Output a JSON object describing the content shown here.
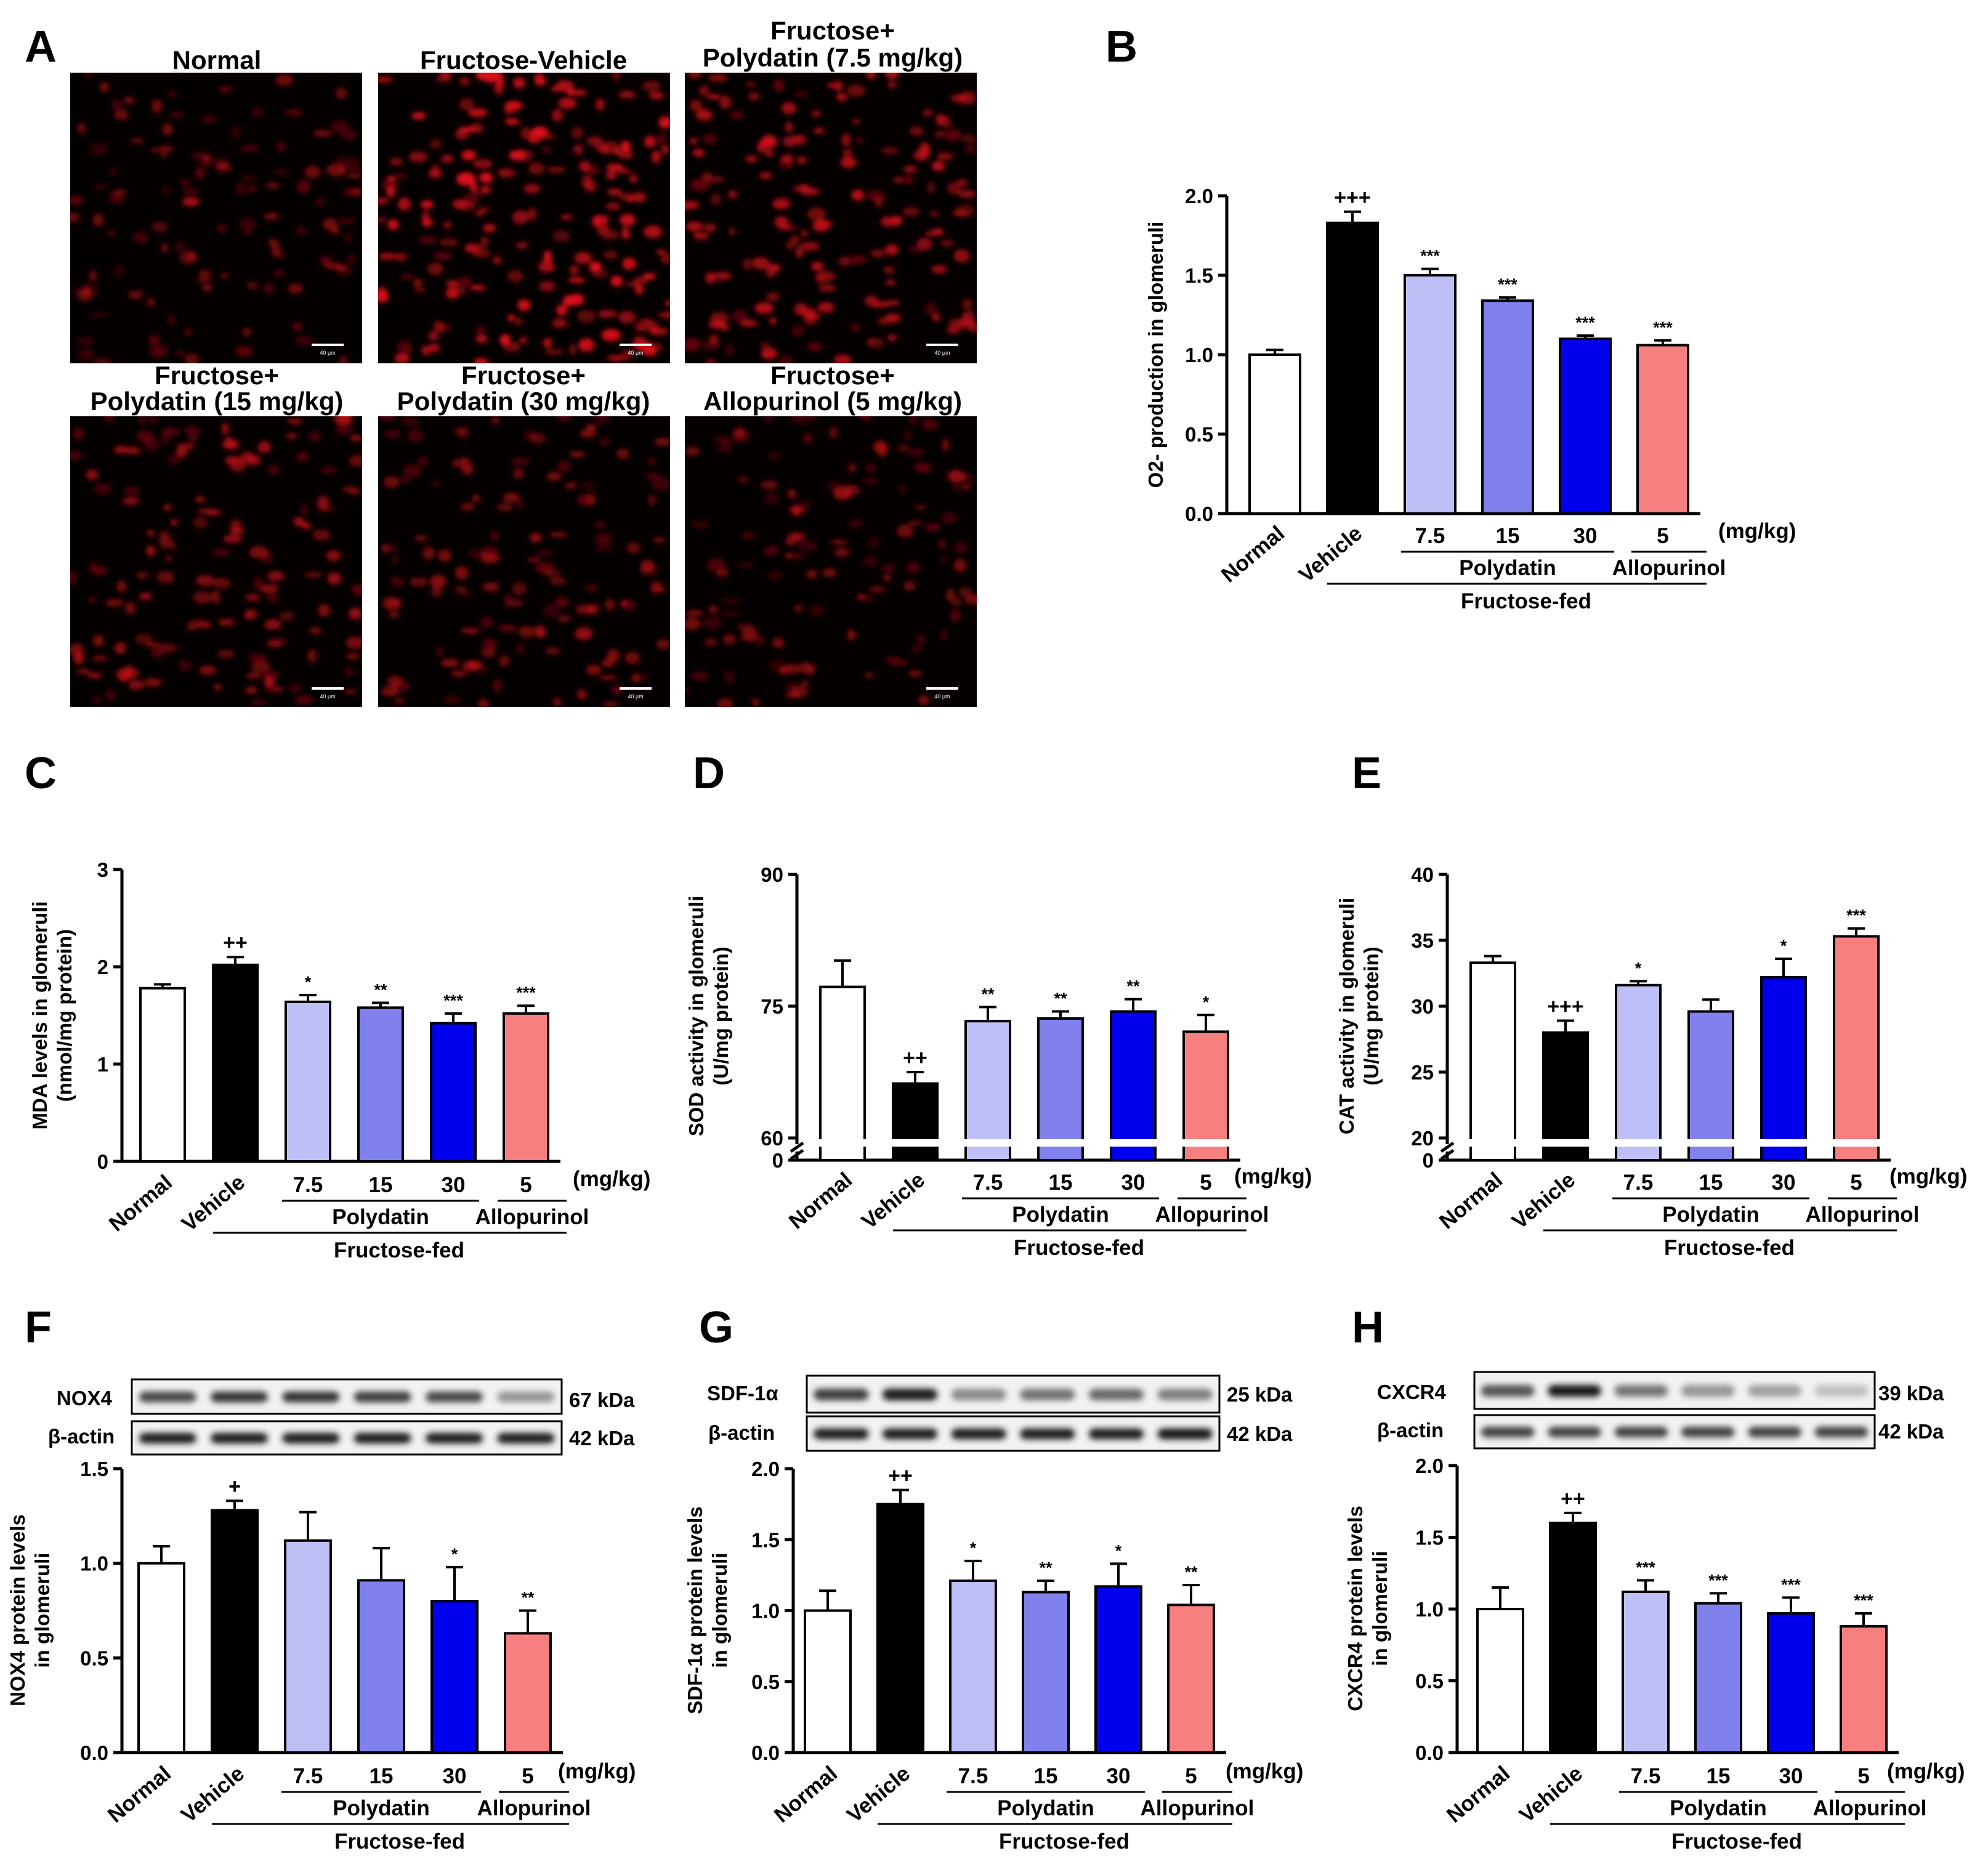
{
  "panel_labels": [
    "A",
    "B",
    "C",
    "D",
    "E",
    "F",
    "G",
    "H"
  ],
  "micrographs": {
    "titles": [
      [
        "Normal"
      ],
      [
        "Fructose-Vehicle"
      ],
      [
        "Fructose+",
        "Polydatin (7.5 mg/kg)"
      ],
      [
        "Fructose+",
        "Polydatin (15 mg/kg)"
      ],
      [
        "Fructose+",
        "Polydatin (30 mg/kg)"
      ],
      [
        "Fructose+",
        "Allopurinol (5 mg/kg)"
      ]
    ],
    "scale_bar_label": "40 μm",
    "intensity": [
      0.35,
      1.0,
      0.75,
      0.55,
      0.45,
      0.4
    ],
    "stain_color": "#e0101a",
    "background_color": "#050000"
  },
  "groups": {
    "categories": [
      "Normal",
      "Vehicle",
      "7.5",
      "15",
      "30",
      "5"
    ],
    "unit": "(mg/kg)",
    "polydatin": "Polydatin",
    "allopurinol": "Allopurinol",
    "fructose_fed": "Fructose-fed"
  },
  "colors": {
    "bars": [
      "#ffffff",
      "#000000",
      "#bfbff7",
      "#8181ee",
      "#0000ee",
      "#f77f7f"
    ]
  },
  "blots": {
    "F": {
      "rows": [
        {
          "name": "NOX4",
          "kda": "67 kDa",
          "intensity": [
            0.75,
            0.85,
            0.85,
            0.8,
            0.75,
            0.4
          ]
        },
        {
          "name": "β-actin",
          "kda": "42 kDa",
          "intensity": [
            0.95,
            0.95,
            0.95,
            0.95,
            0.95,
            0.95
          ]
        }
      ]
    },
    "G": {
      "rows": [
        {
          "name": "SDF-1α",
          "kda": "25 kDa",
          "intensity": [
            0.8,
            0.95,
            0.45,
            0.55,
            0.6,
            0.5
          ]
        },
        {
          "name": "β-actin",
          "kda": "42 kDa",
          "intensity": [
            0.95,
            0.95,
            0.95,
            0.95,
            0.95,
            1.0
          ]
        }
      ]
    },
    "H": {
      "rows": [
        {
          "name": "CXCR4",
          "kda": "39 kDa",
          "intensity": [
            0.7,
            1.0,
            0.55,
            0.4,
            0.35,
            0.2
          ]
        },
        {
          "name": "β-actin",
          "kda": "42 kDa",
          "intensity": [
            0.8,
            0.8,
            0.8,
            0.8,
            0.8,
            0.8
          ]
        }
      ]
    }
  },
  "chart_data": [
    {
      "panel": "B",
      "type": "bar",
      "ylabel": "O2- production in glomeruli",
      "ylim": [
        0,
        2.0
      ],
      "yticks": [
        "0.0",
        "0.5",
        "1.0",
        "1.5",
        "2.0"
      ],
      "values": [
        1.0,
        1.83,
        1.5,
        1.34,
        1.1,
        1.06
      ],
      "errors": [
        0.03,
        0.07,
        0.04,
        0.02,
        0.02,
        0.03
      ],
      "annotations": [
        "",
        "+++",
        "***",
        "***",
        "***",
        "***"
      ]
    },
    {
      "panel": "C",
      "type": "bar",
      "ylabel": [
        "MDA levels in glomeruli",
        "(nmol/mg protein)"
      ],
      "ylim": [
        0,
        3
      ],
      "yticks": [
        "0",
        "1",
        "2",
        "3"
      ],
      "values": [
        1.78,
        2.02,
        1.64,
        1.58,
        1.42,
        1.52
      ],
      "errors": [
        0.04,
        0.08,
        0.07,
        0.05,
        0.1,
        0.08
      ],
      "annotations": [
        "",
        "++",
        "*",
        "**",
        "***",
        "***"
      ]
    },
    {
      "panel": "D",
      "type": "bar",
      "ylabel": [
        "SOD activity in glomeruli",
        "(U/mg protein)"
      ],
      "ylim": [
        60,
        90
      ],
      "axis_break": true,
      "yticks": [
        "0",
        "60",
        "75",
        "90"
      ],
      "values": [
        77.2,
        66.2,
        73.3,
        73.6,
        74.4,
        72.1
      ],
      "errors": [
        3.0,
        1.3,
        1.6,
        0.8,
        1.4,
        1.9
      ],
      "annotations": [
        "",
        "++",
        "**",
        "**",
        "**",
        "*"
      ]
    },
    {
      "panel": "E",
      "type": "bar",
      "ylabel": [
        "CAT activity in glomeruli",
        "(U/mg protein)"
      ],
      "ylim": [
        20,
        40
      ],
      "axis_break": true,
      "yticks": [
        "0",
        "20",
        "25",
        "30",
        "35",
        "40"
      ],
      "values": [
        33.3,
        28.0,
        31.6,
        29.6,
        32.2,
        35.3
      ],
      "errors": [
        0.5,
        0.9,
        0.3,
        0.9,
        1.4,
        0.6
      ],
      "annotations": [
        "",
        "+++",
        "*",
        "",
        "*",
        "***"
      ]
    },
    {
      "panel": "F",
      "type": "bar",
      "ylabel": [
        "NOX4 protein levels",
        "in glomeruli"
      ],
      "ylim": [
        0,
        1.5
      ],
      "yticks": [
        "0.0",
        "0.5",
        "1.0",
        "1.5"
      ],
      "values": [
        1.0,
        1.28,
        1.12,
        0.91,
        0.8,
        0.63
      ],
      "errors": [
        0.09,
        0.05,
        0.15,
        0.17,
        0.18,
        0.12
      ],
      "annotations": [
        "",
        "+",
        "",
        "",
        "*",
        "**"
      ]
    },
    {
      "panel": "G",
      "type": "bar",
      "ylabel": [
        "SDF-1α protein levels",
        "in glomeruli"
      ],
      "ylim": [
        0,
        2.0
      ],
      "yticks": [
        "0.0",
        "0.5",
        "1.0",
        "1.5",
        "2.0"
      ],
      "values": [
        1.0,
        1.75,
        1.21,
        1.13,
        1.17,
        1.04
      ],
      "errors": [
        0.14,
        0.1,
        0.14,
        0.08,
        0.16,
        0.14
      ],
      "annotations": [
        "",
        "++",
        "*",
        "**",
        "*",
        "**"
      ]
    },
    {
      "panel": "H",
      "type": "bar",
      "ylabel": [
        "CXCR4 protein levels",
        "in glomeruli"
      ],
      "ylim": [
        0,
        2.0
      ],
      "yticks": [
        "0.0",
        "0.5",
        "1.0",
        "1.5",
        "2.0"
      ],
      "values": [
        1.0,
        1.6,
        1.12,
        1.04,
        0.97,
        0.88
      ],
      "errors": [
        0.15,
        0.07,
        0.08,
        0.07,
        0.11,
        0.09
      ],
      "annotations": [
        "",
        "++",
        "***",
        "***",
        "***",
        "***"
      ]
    }
  ]
}
